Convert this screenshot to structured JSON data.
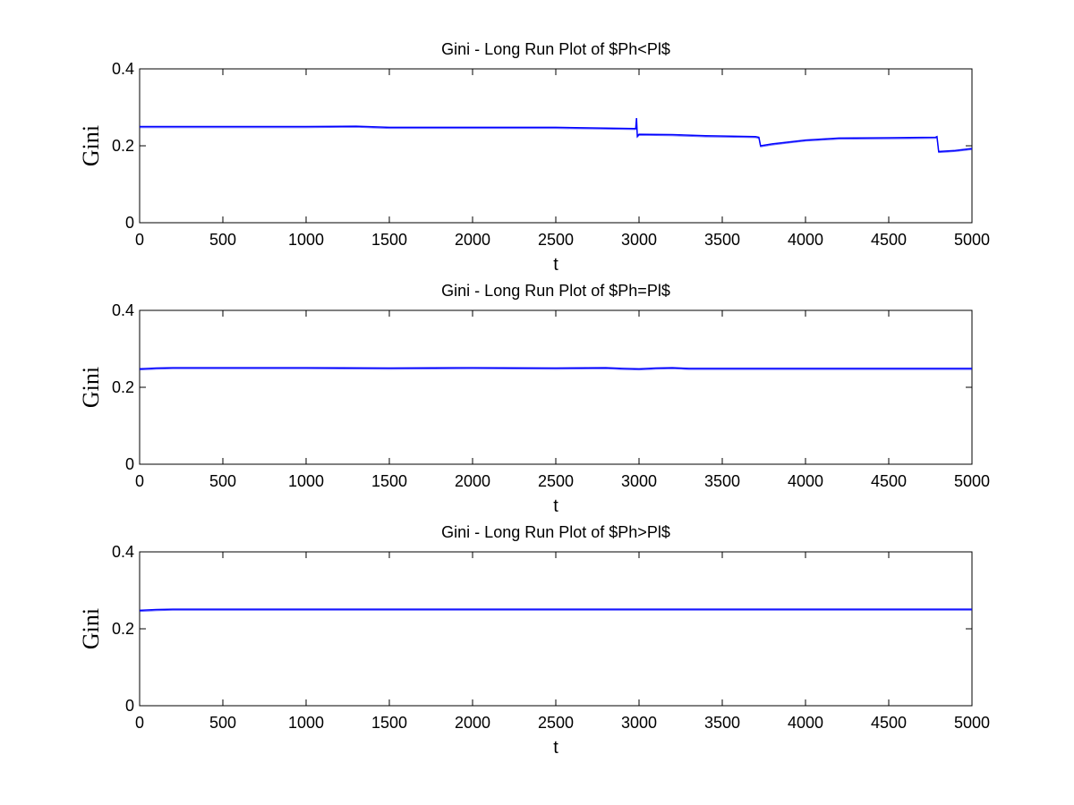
{
  "chart_data": [
    {
      "type": "line",
      "title": "Gini - Long Run Plot of $Ph<Pl$",
      "xlabel": "t",
      "ylabel": "Gini",
      "xlim": [
        0,
        5000
      ],
      "ylim": [
        0,
        0.4
      ],
      "xticks": [
        0,
        500,
        1000,
        1500,
        2000,
        2500,
        3000,
        3500,
        4000,
        4500,
        5000
      ],
      "yticks": [
        0,
        0.2,
        0.4
      ],
      "ytick_labels": [
        "0",
        "0.2",
        "0.4"
      ],
      "line_color": "#0000ff",
      "series": [
        {
          "x": [
            0,
            500,
            1000,
            1300,
            1500,
            2000,
            2500,
            2800,
            2980,
            2985,
            2990,
            3000,
            3200,
            3400,
            3700,
            3720,
            3730,
            3800,
            3900,
            4000,
            4200,
            4500,
            4780,
            4790,
            4800,
            4900,
            5000
          ],
          "y": [
            0.25,
            0.25,
            0.25,
            0.251,
            0.248,
            0.248,
            0.248,
            0.246,
            0.245,
            0.272,
            0.225,
            0.23,
            0.229,
            0.226,
            0.224,
            0.222,
            0.2,
            0.205,
            0.21,
            0.215,
            0.22,
            0.221,
            0.222,
            0.224,
            0.185,
            0.188,
            0.193
          ]
        }
      ]
    },
    {
      "type": "line",
      "title": "Gini - Long Run Plot of $Ph=Pl$",
      "xlabel": "t",
      "ylabel": "Gini",
      "xlim": [
        0,
        5000
      ],
      "ylim": [
        0,
        0.4
      ],
      "xticks": [
        0,
        500,
        1000,
        1500,
        2000,
        2500,
        3000,
        3500,
        4000,
        4500,
        5000
      ],
      "yticks": [
        0,
        0.2,
        0.4
      ],
      "ytick_labels": [
        "0",
        "0.2",
        "0.4"
      ],
      "line_color": "#0000ff",
      "series": [
        {
          "x": [
            0,
            100,
            200,
            500,
            1000,
            1500,
            2000,
            2500,
            2800,
            2900,
            3000,
            3100,
            3200,
            3300,
            4000,
            4500,
            5000
          ],
          "y": [
            0.248,
            0.25,
            0.251,
            0.251,
            0.251,
            0.25,
            0.251,
            0.25,
            0.251,
            0.249,
            0.248,
            0.25,
            0.251,
            0.249,
            0.249,
            0.249,
            0.249
          ]
        }
      ]
    },
    {
      "type": "line",
      "title": "Gini - Long Run Plot of $Ph>Pl$",
      "xlabel": "t",
      "ylabel": "Gini",
      "xlim": [
        0,
        5000
      ],
      "ylim": [
        0,
        0.4
      ],
      "xticks": [
        0,
        500,
        1000,
        1500,
        2000,
        2500,
        3000,
        3500,
        4000,
        4500,
        5000
      ],
      "yticks": [
        0,
        0.2,
        0.4
      ],
      "ytick_labels": [
        "0",
        "0.2",
        "0.4"
      ],
      "line_color": "#0000ff",
      "series": [
        {
          "x": [
            0,
            100,
            200,
            500,
            1000,
            1500,
            2000,
            2500,
            3000,
            3500,
            4000,
            4500,
            5000
          ],
          "y": [
            0.248,
            0.25,
            0.251,
            0.251,
            0.251,
            0.251,
            0.251,
            0.251,
            0.251,
            0.251,
            0.251,
            0.251,
            0.251
          ]
        }
      ]
    }
  ]
}
